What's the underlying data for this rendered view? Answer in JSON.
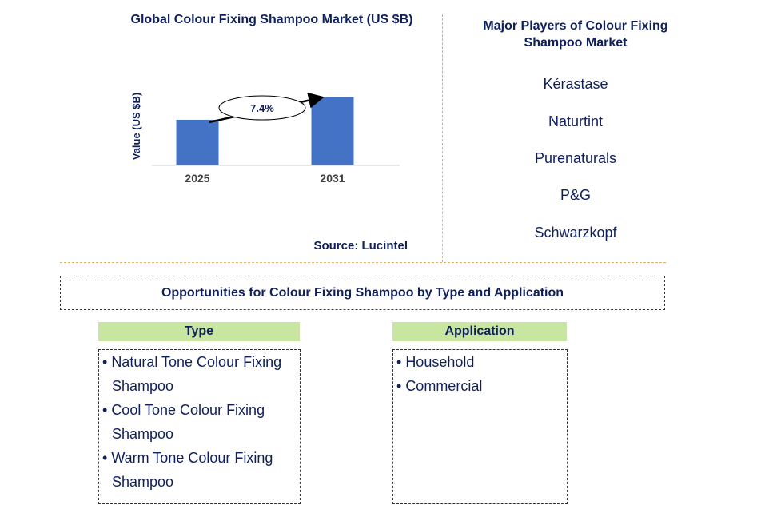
{
  "chart_data": {
    "type": "bar",
    "title": "Global Colour Fixing Shampoo Market (US $B)",
    "ylabel": "Value (US $B)",
    "xlabel": "",
    "categories": [
      "2025",
      "2031"
    ],
    "values": [
      1.0,
      1.5
    ],
    "ylim": [
      0,
      1.7
    ],
    "grid": false,
    "bar_color": "#4472c4",
    "annotation": {
      "label": "7.4%",
      "type": "CAGR arrow"
    }
  },
  "source": "Source: Lucintel",
  "players": {
    "title": "Major Players of Colour Fixing Shampoo Market",
    "items": [
      "Kérastase",
      "Naturtint",
      "Purenaturals",
      "P&G",
      "Schwarzkopf"
    ]
  },
  "opportunities": {
    "title": "Opportunities for Colour Fixing Shampoo by Type and Application",
    "type_header": "Type",
    "type_items": [
      "Natural Tone Colour Fixing Shampoo",
      "Cool Tone Colour Fixing Shampoo",
      "Warm Tone Colour Fixing Shampoo"
    ],
    "application_header": "Application",
    "application_items": [
      "Household",
      "Commercial"
    ]
  }
}
